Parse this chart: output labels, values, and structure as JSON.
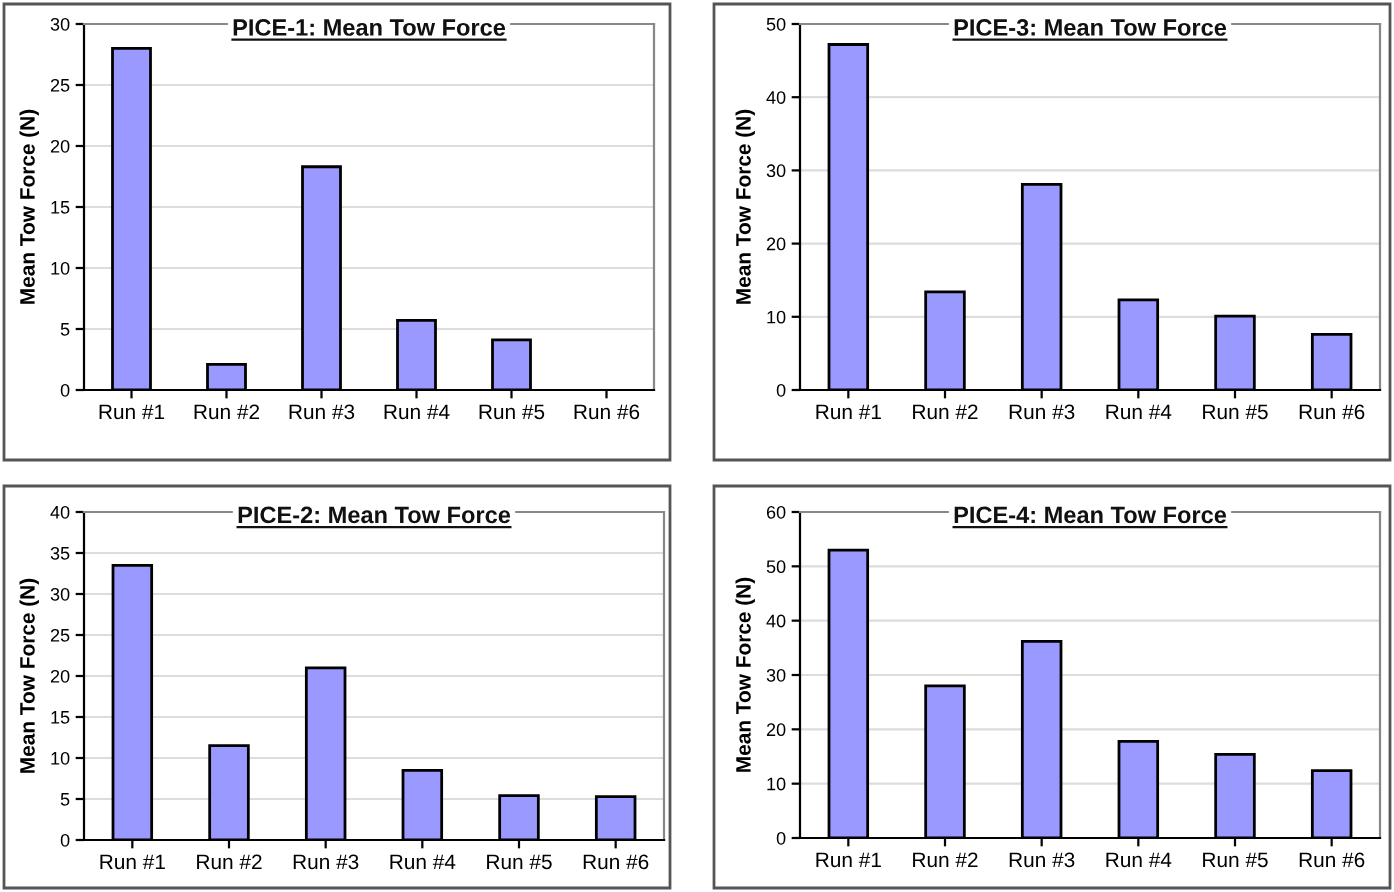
{
  "chart_data": [
    {
      "type": "bar",
      "title": "PICE-1: Mean Tow Force",
      "ylabel": "Mean Tow Force (N)",
      "categories": [
        "Run #1",
        "Run #2",
        "Run #3",
        "Run #4",
        "Run #5",
        "Run #6"
      ],
      "values": [
        28,
        2.1,
        18.3,
        5.7,
        4.1,
        null
      ],
      "color": "#9999ff",
      "ylim": [
        0,
        30
      ],
      "yticks": [
        0,
        5,
        10,
        15,
        20,
        25,
        30
      ],
      "grid": "y"
    },
    {
      "type": "bar",
      "title": "PICE-3: Mean Tow Force",
      "ylabel": "Mean Tow Force (N)",
      "categories": [
        "Run #1",
        "Run #2",
        "Run #3",
        "Run #4",
        "Run #5",
        "Run #6"
      ],
      "values": [
        47.2,
        13.4,
        28.1,
        12.3,
        10.1,
        7.6
      ],
      "color": "#9999ff",
      "ylim": [
        0,
        50
      ],
      "yticks": [
        0,
        10,
        20,
        30,
        40,
        50
      ],
      "grid": "y"
    },
    {
      "type": "bar",
      "title": "PICE-2: Mean Tow Force",
      "ylabel": "Mean Tow Force (N)",
      "categories": [
        "Run #1",
        "Run #2",
        "Run #3",
        "Run #4",
        "Run #5",
        "Run #6"
      ],
      "values": [
        33.5,
        11.5,
        21,
        8.5,
        5.4,
        5.3
      ],
      "color": "#9999ff",
      "ylim": [
        0,
        40
      ],
      "yticks": [
        0,
        5,
        10,
        15,
        20,
        25,
        30,
        35,
        40
      ],
      "grid": "y"
    },
    {
      "type": "bar",
      "title": "PICE-4: Mean Tow Force",
      "ylabel": "Mean Tow Force (N)",
      "categories": [
        "Run #1",
        "Run #2",
        "Run #3",
        "Run #4",
        "Run #5",
        "Run #6"
      ],
      "values": [
        53,
        28,
        36.2,
        17.8,
        15.4,
        12.4
      ],
      "color": "#9999ff",
      "ylim": [
        0,
        60
      ],
      "yticks": [
        0,
        10,
        20,
        30,
        40,
        50,
        60
      ],
      "grid": "y"
    }
  ]
}
